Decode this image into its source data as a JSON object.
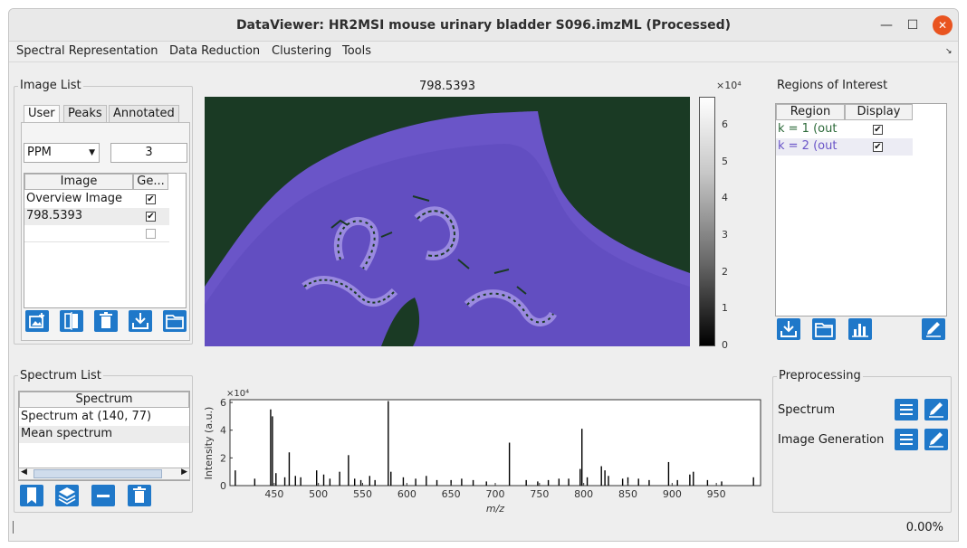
{
  "window": {
    "title": "DataViewer: HR2MSI mouse urinary bladder S096.imzML (Processed)",
    "minimize_glyph": "—",
    "maximize_glyph": "☐",
    "close_glyph": "✕"
  },
  "menubar": {
    "items": [
      "Spectral Representation",
      "Data Reduction",
      "Clustering",
      "Tools"
    ],
    "corner_glyph": "↘"
  },
  "image_list": {
    "label": "Image List",
    "tabs": [
      "User",
      "Peaks",
      "Annotated"
    ],
    "active_tab": "User",
    "unit_select": "PPM",
    "unit_value": "3",
    "columns": [
      "Image",
      "Ge..."
    ],
    "rows": [
      {
        "name": "Overview Image",
        "checked": true
      },
      {
        "name": "798.5393",
        "checked": true
      },
      {
        "name": "",
        "checked": false
      }
    ],
    "check_glyph": "✔"
  },
  "ion_image": {
    "title": "798.5393",
    "colorbar_exponent": "×10⁴",
    "colorbar_ticks": [
      "6",
      "5",
      "4",
      "3",
      "2",
      "1",
      "0"
    ]
  },
  "regions": {
    "label": "Regions of Interest",
    "columns": [
      "Region",
      "Display"
    ],
    "rows": [
      {
        "name": "k = 1 (out",
        "color": "#2d6a3a",
        "checked": true
      },
      {
        "name": "k = 2 (out",
        "color": "#6a55c8",
        "checked": true
      }
    ]
  },
  "spectrum_list": {
    "label": "Spectrum List",
    "column": "Spectrum",
    "rows": [
      "Spectrum at (140, 77)",
      "Mean spectrum"
    ],
    "scroll_left": "◀",
    "scroll_right": "▶"
  },
  "preprocessing": {
    "label": "Preprocessing",
    "rows": [
      "Spectrum",
      "Image Generation"
    ]
  },
  "status": {
    "progress": "0.00%"
  },
  "chart_data": {
    "type": "bar",
    "title": "",
    "xlabel": "m/z",
    "ylabel": "Intensity (a.u.)",
    "y_exponent": "×10⁴",
    "xlim": [
      400,
      1000
    ],
    "ylim": [
      0,
      6.2
    ],
    "x_ticks": [
      "450",
      "500",
      "550",
      "600",
      "650",
      "700",
      "750",
      "800",
      "850",
      "900",
      "950"
    ],
    "y_ticks": [
      "0",
      "2",
      "4",
      "6"
    ],
    "peaks": [
      {
        "mz": 406,
        "value": 1.1
      },
      {
        "mz": 428,
        "value": 0.5
      },
      {
        "mz": 446,
        "value": 5.5
      },
      {
        "mz": 448,
        "value": 5.0
      },
      {
        "mz": 452,
        "value": 0.9
      },
      {
        "mz": 462,
        "value": 0.6
      },
      {
        "mz": 467,
        "value": 2.4
      },
      {
        "mz": 474,
        "value": 0.7
      },
      {
        "mz": 480,
        "value": 0.6
      },
      {
        "mz": 498,
        "value": 1.1
      },
      {
        "mz": 506,
        "value": 0.8
      },
      {
        "mz": 513,
        "value": 0.5
      },
      {
        "mz": 524,
        "value": 1.0
      },
      {
        "mz": 534,
        "value": 2.2
      },
      {
        "mz": 541,
        "value": 0.5
      },
      {
        "mz": 548,
        "value": 0.4
      },
      {
        "mz": 558,
        "value": 0.7
      },
      {
        "mz": 564,
        "value": 0.4
      },
      {
        "mz": 579,
        "value": 6.1
      },
      {
        "mz": 582,
        "value": 1.0
      },
      {
        "mz": 596,
        "value": 0.6
      },
      {
        "mz": 610,
        "value": 0.5
      },
      {
        "mz": 622,
        "value": 0.7
      },
      {
        "mz": 634,
        "value": 0.4
      },
      {
        "mz": 650,
        "value": 0.4
      },
      {
        "mz": 662,
        "value": 0.5
      },
      {
        "mz": 675,
        "value": 0.4
      },
      {
        "mz": 690,
        "value": 0.3
      },
      {
        "mz": 716,
        "value": 3.1
      },
      {
        "mz": 735,
        "value": 0.4
      },
      {
        "mz": 748,
        "value": 0.3
      },
      {
        "mz": 760,
        "value": 0.4
      },
      {
        "mz": 772,
        "value": 0.5
      },
      {
        "mz": 783,
        "value": 0.5
      },
      {
        "mz": 796,
        "value": 1.2
      },
      {
        "mz": 798,
        "value": 4.1
      },
      {
        "mz": 804,
        "value": 0.6
      },
      {
        "mz": 820,
        "value": 1.4
      },
      {
        "mz": 824,
        "value": 1.1
      },
      {
        "mz": 828,
        "value": 0.7
      },
      {
        "mz": 844,
        "value": 0.5
      },
      {
        "mz": 850,
        "value": 0.6
      },
      {
        "mz": 862,
        "value": 0.5
      },
      {
        "mz": 874,
        "value": 0.4
      },
      {
        "mz": 896,
        "value": 1.7
      },
      {
        "mz": 906,
        "value": 0.4
      },
      {
        "mz": 920,
        "value": 0.8
      },
      {
        "mz": 924,
        "value": 1.0
      },
      {
        "mz": 940,
        "value": 0.4
      },
      {
        "mz": 956,
        "value": 0.3
      },
      {
        "mz": 992,
        "value": 0.6
      }
    ]
  }
}
